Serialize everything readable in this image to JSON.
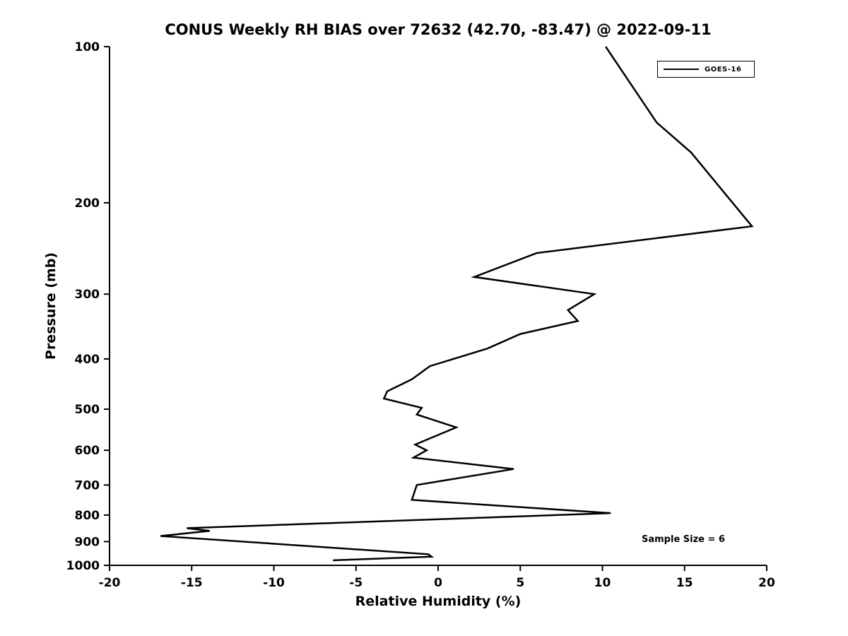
{
  "title": "CONUS Weekly RH BIAS over 72632 (42.70, -83.47) @ 2022-09-11",
  "xlabel": "Relative Humidity (%)",
  "ylabel": "Pressure (mb)",
  "annotation": "Sample Size = 6",
  "legend": {
    "position": "upper right",
    "entries": [
      {
        "label": "GOES-16",
        "color": "#000000"
      }
    ]
  },
  "chart_data": {
    "type": "line",
    "title": "CONUS Weekly RH BIAS over 72632 (42.70, -83.47) @ 2022-09-11",
    "xlabel": "Relative Humidity (%)",
    "ylabel": "Pressure (mb)",
    "xlim": [
      -20,
      20
    ],
    "ylim": [
      1000,
      100
    ],
    "y_scale": "log",
    "grid": false,
    "x_ticks": [
      -20,
      -15,
      -10,
      -5,
      0,
      5,
      10,
      15,
      20
    ],
    "y_ticks": [
      100,
      200,
      300,
      400,
      500,
      600,
      700,
      800,
      900,
      1000
    ],
    "legend_position": "upper right",
    "series": [
      {
        "name": "GOES-16",
        "color": "#000000",
        "line_width": 2.5,
        "points_rh_p": [
          [
            10.2,
            100
          ],
          [
            13.3,
            140
          ],
          [
            15.4,
            160
          ],
          [
            19.1,
            222
          ],
          [
            6.0,
            250
          ],
          [
            2.2,
            278
          ],
          [
            9.5,
            300
          ],
          [
            7.9,
            322
          ],
          [
            8.5,
            338
          ],
          [
            5.0,
            358
          ],
          [
            3.0,
            382
          ],
          [
            -0.5,
            413
          ],
          [
            -1.6,
            438
          ],
          [
            -3.1,
            462
          ],
          [
            -3.3,
            477
          ],
          [
            -1.0,
            497
          ],
          [
            -1.3,
            512
          ],
          [
            1.1,
            542
          ],
          [
            -1.4,
            585
          ],
          [
            -0.7,
            600
          ],
          [
            -1.5,
            620
          ],
          [
            4.6,
            652
          ],
          [
            -1.3,
            700
          ],
          [
            -1.6,
            748
          ],
          [
            10.5,
            793
          ],
          [
            -15.3,
            848
          ],
          [
            -13.9,
            858
          ],
          [
            -16.9,
            878
          ],
          [
            -0.6,
            952
          ],
          [
            -0.4,
            962
          ],
          [
            -6.4,
            978
          ]
        ]
      }
    ]
  }
}
